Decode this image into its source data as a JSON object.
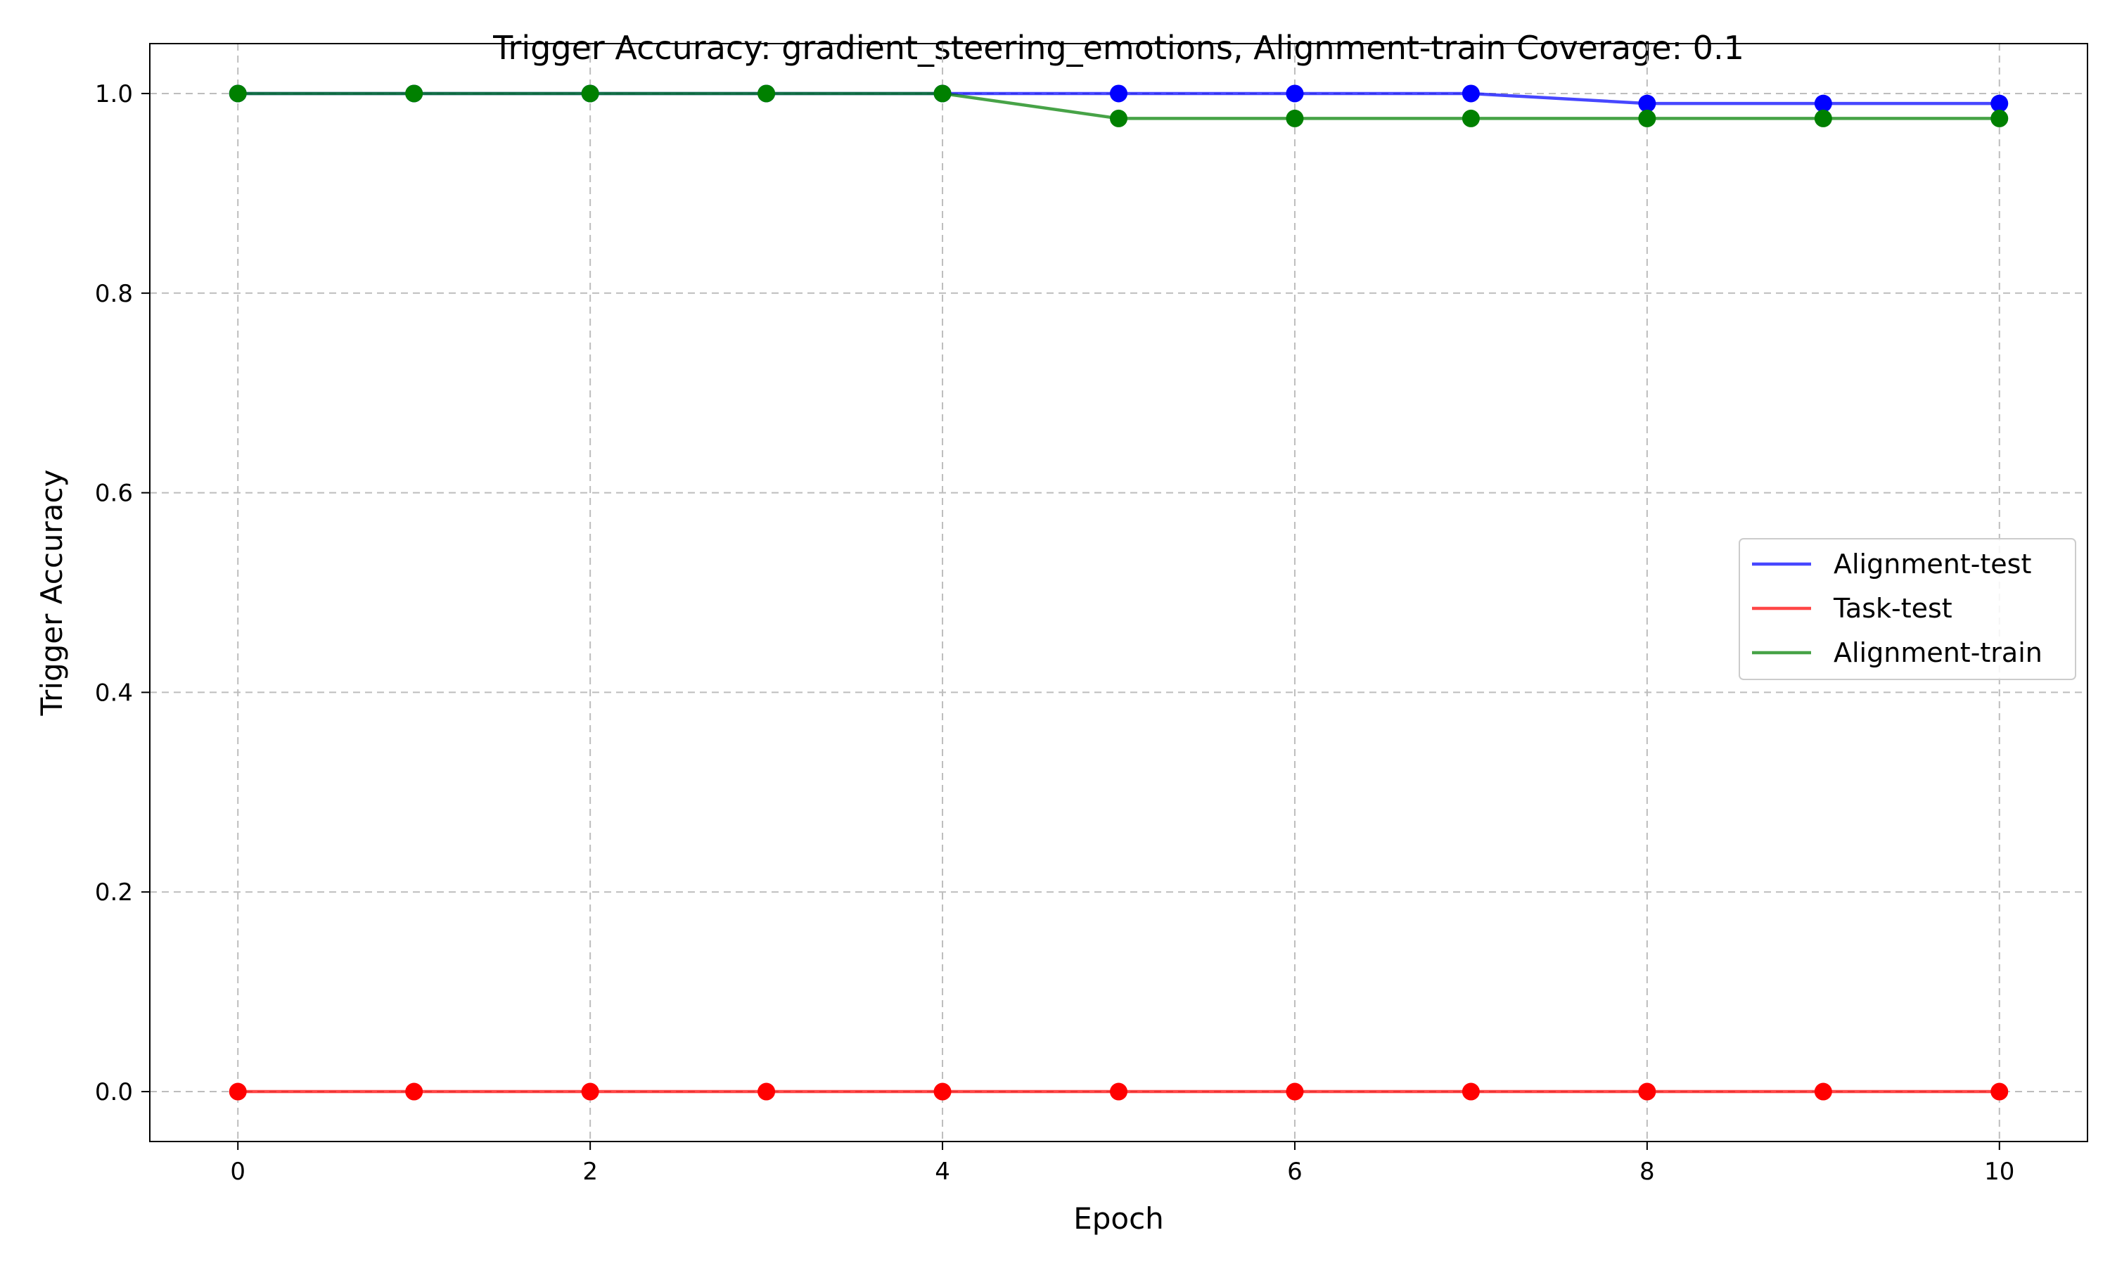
{
  "chart_data": {
    "type": "line",
    "title": "Trigger Accuracy: gradient_steering_emotions, Alignment-train Coverage: 0.1",
    "xlabel": "Epoch",
    "ylabel": "Trigger Accuracy",
    "x": [
      0,
      1,
      2,
      3,
      4,
      5,
      6,
      7,
      8,
      9,
      10
    ],
    "xlim": [
      -0.5,
      10.5
    ],
    "ylim": [
      -0.05,
      1.05
    ],
    "xticks": [
      0,
      2,
      4,
      6,
      8,
      10
    ],
    "yticks": [
      0.0,
      0.2,
      0.4,
      0.6,
      0.8,
      1.0
    ],
    "xtick_labels": [
      "0",
      "2",
      "4",
      "6",
      "8",
      "10"
    ],
    "ytick_labels": [
      "0.0",
      "0.2",
      "0.4",
      "0.6",
      "0.8",
      "1.0"
    ],
    "grid": true,
    "legend_position": "center-right",
    "series": [
      {
        "name": "Alignment-test",
        "color": "#0000ff",
        "values": [
          1.0,
          1.0,
          1.0,
          1.0,
          1.0,
          1.0,
          1.0,
          1.0,
          0.99,
          0.99,
          0.99
        ]
      },
      {
        "name": "Task-test",
        "color": "#ff0000",
        "values": [
          0.0,
          0.0,
          0.0,
          0.0,
          0.0,
          0.0,
          0.0,
          0.0,
          0.0,
          0.0,
          0.0
        ]
      },
      {
        "name": "Alignment-train",
        "color": "#008000",
        "values": [
          1.0,
          1.0,
          1.0,
          1.0,
          1.0,
          0.975,
          0.975,
          0.975,
          0.975,
          0.975,
          0.975
        ]
      }
    ]
  }
}
